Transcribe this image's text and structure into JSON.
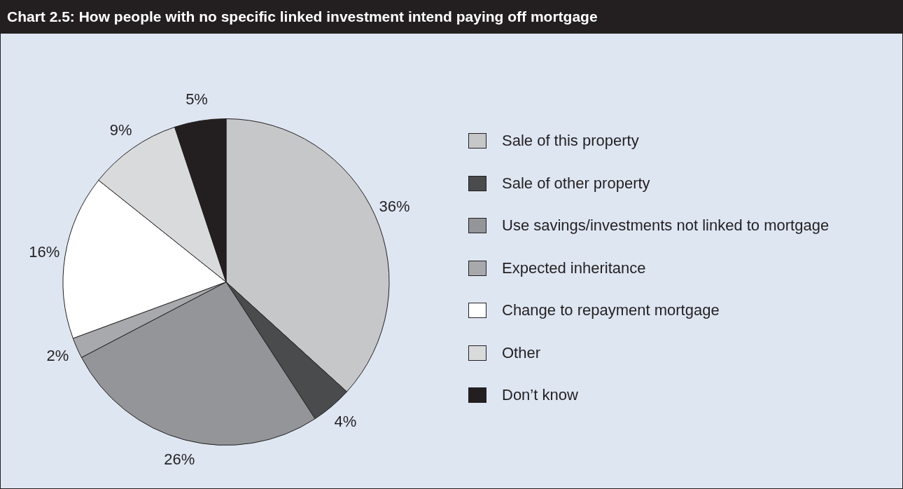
{
  "chart_data": {
    "type": "pie",
    "title": "Chart 2.5: How people with no specific linked investment intend paying off mortgage",
    "categories": [
      "Sale of this property",
      "Sale of other property",
      "Use savings/investments not linked to mortgage",
      "Expected inheritance",
      "Change to repayment mortgage",
      "Other",
      "Don’t know"
    ],
    "values": [
      36,
      4,
      26,
      2,
      16,
      9,
      5
    ],
    "colors": [
      "#c6c7c9",
      "#4a4b4d",
      "#939598",
      "#a7a9ac",
      "#ffffff",
      "#d9dadb",
      "#231f20"
    ],
    "value_labels": [
      "36%",
      "4%",
      "26%",
      "2%",
      "16%",
      "9%",
      "5%"
    ],
    "legend": "right"
  }
}
